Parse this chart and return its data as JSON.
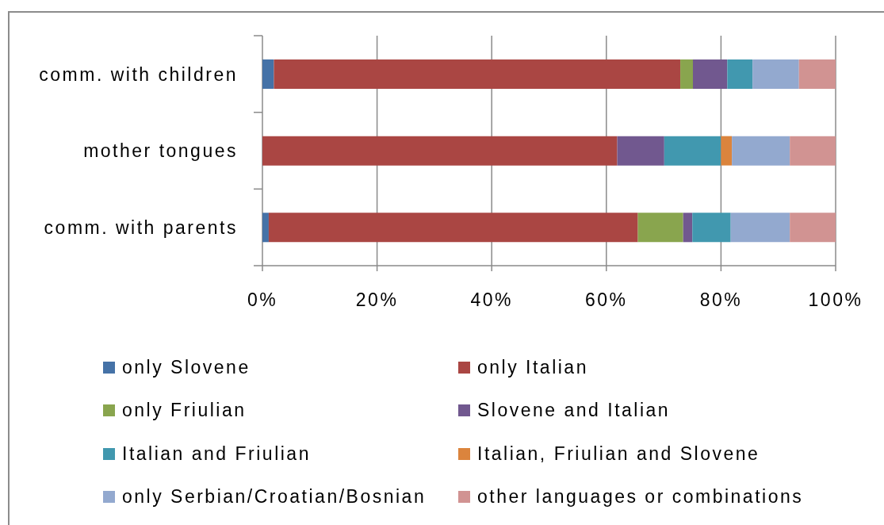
{
  "chart_data": {
    "type": "bar",
    "orientation": "horizontal",
    "stacked": true,
    "categories": [
      "comm. with children",
      "mother tongues",
      "comm. with parents"
    ],
    "series": [
      {
        "name": "only Slovene",
        "color": "#4572a7",
        "values": [
          2,
          0,
          1.1
        ]
      },
      {
        "name": "only Italian",
        "color": "#aa4643",
        "values": [
          70.9,
          61.9,
          64.4
        ]
      },
      {
        "name": "only Friulian",
        "color": "#89a54e",
        "values": [
          2.2,
          0,
          7.9
        ]
      },
      {
        "name": "Slovene and Italian",
        "color": "#71588f",
        "values": [
          6,
          8.2,
          1.6
        ]
      },
      {
        "name": "Italian and Friulian",
        "color": "#4198af",
        "values": [
          4.4,
          9.9,
          6.7
        ]
      },
      {
        "name": "Italian, Friulian and Slovene",
        "color": "#db843d",
        "values": [
          0,
          1.9,
          0
        ]
      },
      {
        "name": "only Serbian/Croatian/Bosnian",
        "color": "#93a9cf",
        "values": [
          8.1,
          10.1,
          10.3
        ]
      },
      {
        "name": "other languages or combinations",
        "color": "#d19392",
        "values": [
          6.4,
          8,
          8
        ]
      }
    ],
    "xlim": [
      0,
      100
    ],
    "xticks": [
      {
        "value": 0,
        "label": "0%"
      },
      {
        "value": 20,
        "label": "20%"
      },
      {
        "value": 40,
        "label": "40%"
      },
      {
        "value": 60,
        "label": "60%"
      },
      {
        "value": 80,
        "label": "80%"
      },
      {
        "value": 100,
        "label": "100%"
      }
    ],
    "grid": "x",
    "legend": "bottom"
  }
}
